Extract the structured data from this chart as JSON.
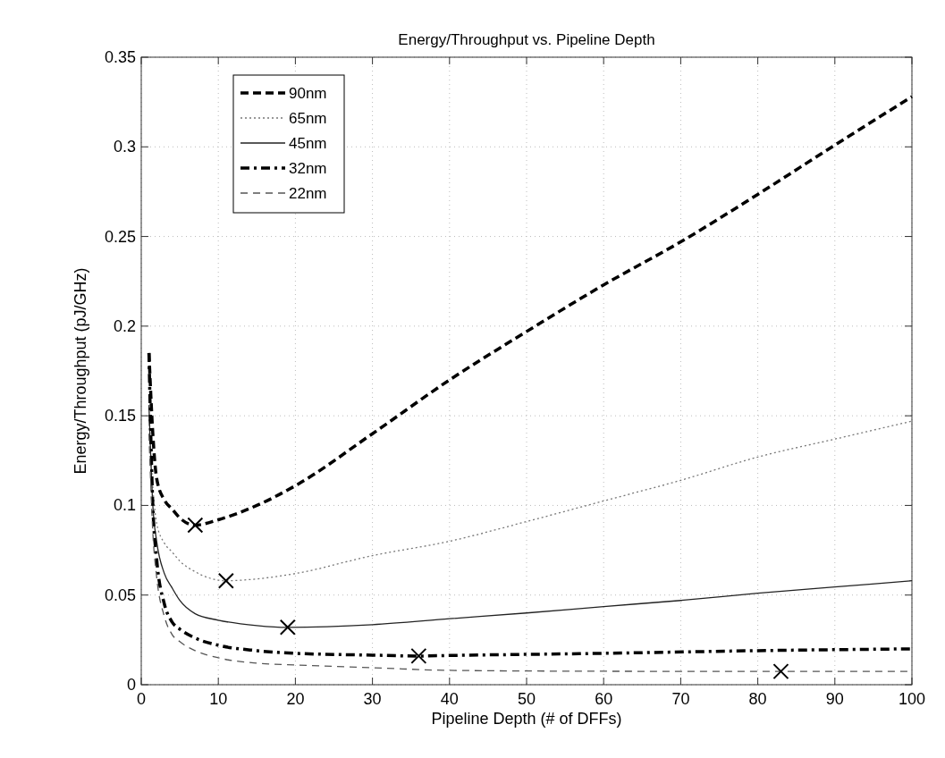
{
  "chart_data": {
    "type": "line",
    "title": "Energy/Throughput vs. Pipeline Depth",
    "xlabel": "Pipeline Depth (# of DFFs)",
    "ylabel": "Energy/Throughput (pJ/GHz)",
    "xlim": [
      0,
      100
    ],
    "xticks": [
      0,
      10,
      20,
      30,
      40,
      50,
      60,
      70,
      80,
      90,
      100
    ],
    "ylim": [
      0,
      0.35
    ],
    "yticks": [
      0,
      0.05,
      0.1,
      0.15,
      0.2,
      0.25,
      0.3,
      0.35
    ],
    "grid": true,
    "legend": "top left",
    "marker": "none",
    "series": [
      {
        "name": "90nm",
        "color": "#000000",
        "line_style": "dashed",
        "x": [
          1,
          1.5,
          2,
          3,
          4,
          5,
          7,
          10,
          15,
          20,
          30,
          40,
          50,
          60,
          70,
          80,
          90,
          100
        ],
        "values": [
          0.185,
          0.14,
          0.115,
          0.103,
          0.098,
          0.093,
          0.089,
          0.092,
          0.1,
          0.111,
          0.14,
          0.17,
          0.197,
          0.223,
          0.247,
          0.2735,
          0.301,
          0.328
        ]
      },
      {
        "name": "65nm",
        "color": "#777777",
        "line_style": "dotted",
        "x": [
          1,
          1.5,
          2,
          3,
          4,
          5,
          7,
          11,
          15,
          20,
          30,
          40,
          50,
          60,
          70,
          80,
          90,
          100
        ],
        "values": [
          0.148,
          0.11,
          0.09,
          0.079,
          0.074,
          0.069,
          0.063,
          0.058,
          0.059,
          0.062,
          0.072,
          0.08,
          0.091,
          0.1025,
          0.114,
          0.127,
          0.137,
          0.147
        ]
      },
      {
        "name": "45nm",
        "color": "#222222",
        "line_style": "solid",
        "x": [
          1,
          1.5,
          2,
          3,
          4,
          5,
          7,
          10,
          15,
          19,
          30,
          40,
          50,
          60,
          70,
          80,
          90,
          100
        ],
        "values": [
          0.156,
          0.1,
          0.08,
          0.062,
          0.054,
          0.047,
          0.0396,
          0.036,
          0.033,
          0.032,
          0.0335,
          0.0368,
          0.04,
          0.0436,
          0.047,
          0.051,
          0.0545,
          0.058
        ]
      },
      {
        "name": "32nm",
        "color": "#000000",
        "line_style": "dashdot",
        "x": [
          1,
          1.5,
          2,
          3,
          4,
          5,
          7,
          10,
          15,
          20,
          30,
          36,
          40,
          60,
          80,
          100
        ],
        "values": [
          0.185,
          0.1,
          0.07,
          0.045,
          0.035,
          0.031,
          0.026,
          0.022,
          0.019,
          0.0175,
          0.0165,
          0.016,
          0.0163,
          0.0175,
          0.019,
          0.02
        ]
      },
      {
        "name": "22nm",
        "color": "#555555",
        "line_style": "dashed",
        "x": [
          1,
          1.5,
          2,
          3,
          4,
          5,
          7,
          10,
          15,
          20,
          30,
          40,
          60,
          83,
          100
        ],
        "values": [
          0.14,
          0.085,
          0.06,
          0.038,
          0.028,
          0.024,
          0.019,
          0.015,
          0.012,
          0.011,
          0.0095,
          0.008,
          0.0075,
          0.0074,
          0.0074
        ]
      },
      {
        "type": "scatter",
        "marker": "cross",
        "color": "#000000",
        "x": [
          7,
          11,
          19,
          36,
          83
        ],
        "values": [
          0.089,
          0.058,
          0.032,
          0.016,
          0.0074
        ]
      }
    ]
  }
}
